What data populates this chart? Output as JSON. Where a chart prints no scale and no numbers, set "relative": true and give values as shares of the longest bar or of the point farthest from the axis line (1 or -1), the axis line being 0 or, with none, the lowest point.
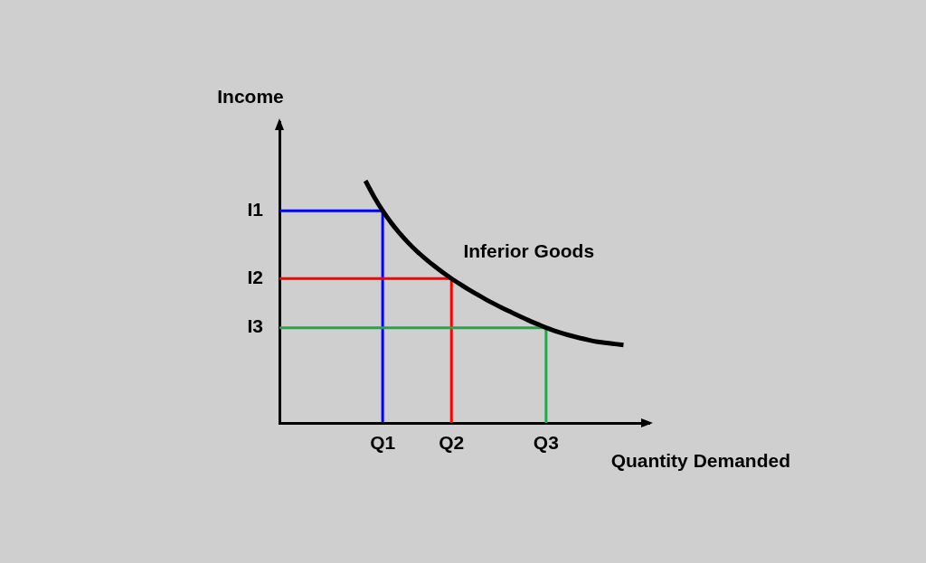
{
  "chart_data": {
    "type": "line",
    "relative": true,
    "xlabel": "Quantity Demanded",
    "ylabel": "Income",
    "categories": [
      null,
      null,
      null,
      null,
      null,
      null,
      null,
      null,
      null,
      null,
      null,
      null,
      "Q1",
      null,
      null,
      null,
      null,
      null,
      null,
      null,
      "Q2",
      null,
      null,
      null,
      null,
      null,
      null,
      null,
      null,
      null,
      null,
      "Q3",
      null,
      null,
      null,
      null,
      null,
      null,
      null,
      null,
      null,
      null,
      null,
      null
    ],
    "legend": false,
    "marker": "none",
    "line_style": "solid",
    "series": [
      {
        "name": "Inferior Goods",
        "color": "#000000",
        "values": [
          null,
          null,
          null,
          null,
          null,
          null,
          null,
          null,
          null,
          null,
          1.0,
          0.934,
          0.876,
          0.826,
          0.782,
          0.743,
          0.708,
          0.677,
          0.648,
          0.621,
          0.596,
          0.573,
          0.551,
          0.53,
          0.51,
          0.491,
          0.473,
          0.456,
          0.439,
          0.423,
          0.408,
          0.393,
          0.38,
          0.369,
          0.359,
          0.35,
          0.342,
          0.335,
          0.33,
          0.326,
          0.322,
          null,
          null,
          null
        ]
      }
    ],
    "ref_lines": [
      {
        "axis": "y",
        "value": 0.876,
        "label": "I1",
        "color": "#0000ff"
      },
      {
        "axis": "y",
        "value": 0.596,
        "label": "I2",
        "color": "#ff0000"
      },
      {
        "axis": "y",
        "value": 0.393,
        "label": "I3",
        "color": "#22a84a"
      }
    ]
  }
}
